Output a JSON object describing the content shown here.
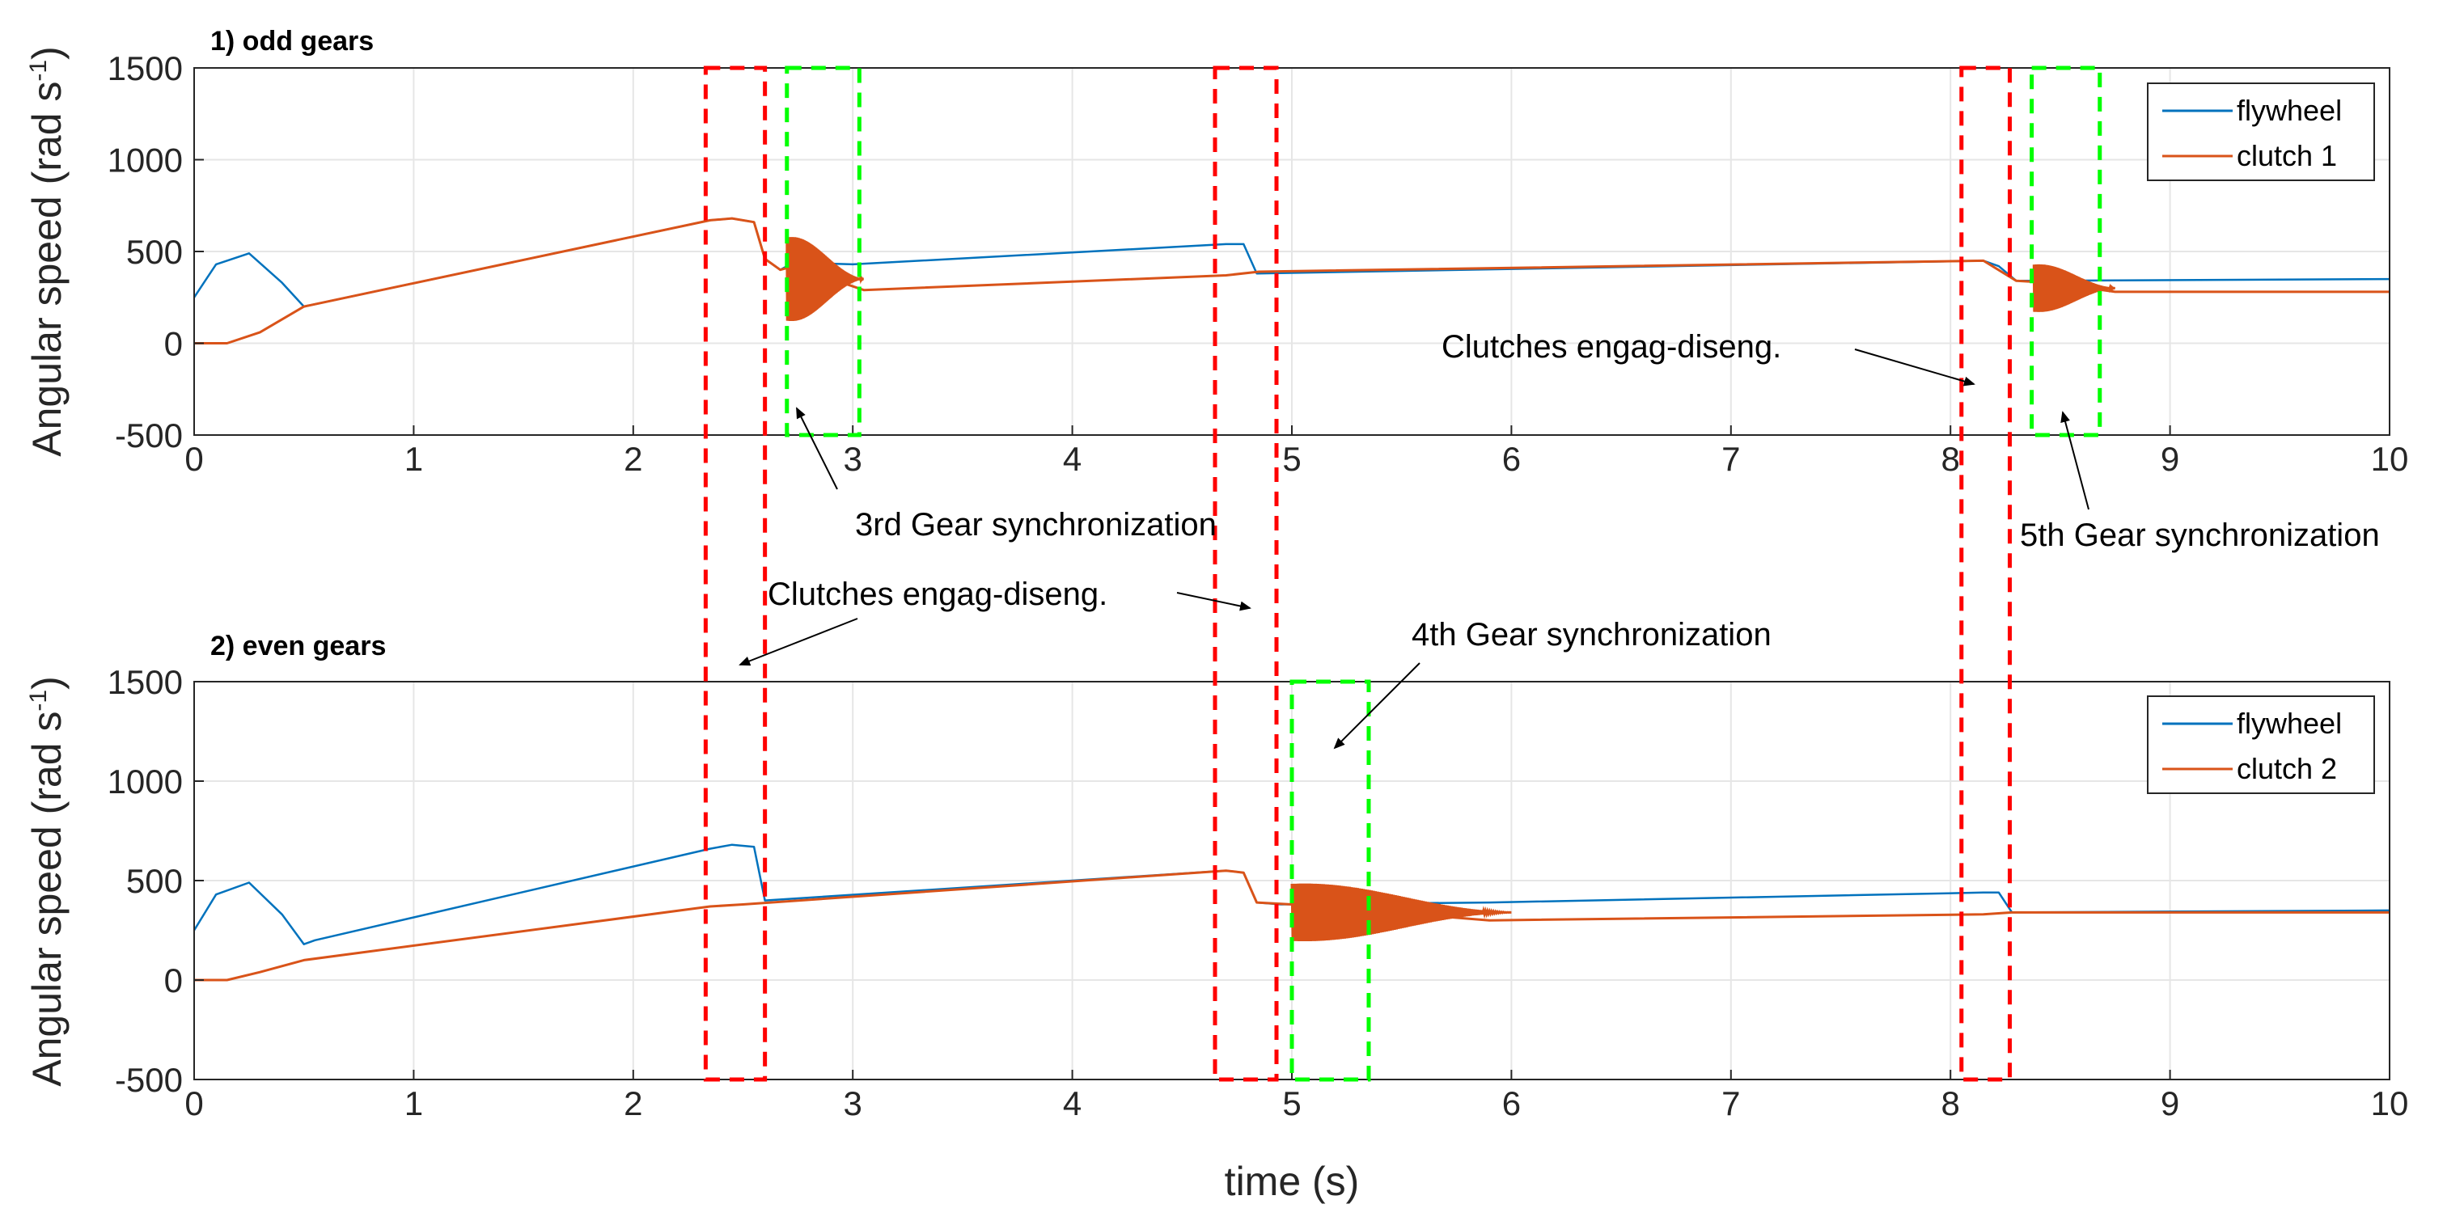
{
  "chart_data": [
    {
      "type": "line",
      "title": "1) odd gears",
      "xlabel": "",
      "ylabel": "Angular speed (rad s",
      "ylabel_sup": "-1",
      "ylabel_close": ")",
      "xlim": [
        0,
        10
      ],
      "ylim": [
        -500,
        1500
      ],
      "xticks": [
        "0",
        "1",
        "2",
        "3",
        "4",
        "5",
        "6",
        "7",
        "8",
        "9",
        "10"
      ],
      "yticks": [
        "-500",
        "0",
        "500",
        "1000",
        "1500"
      ],
      "grid": true,
      "legend_position": "top-right",
      "series": [
        {
          "name": "flywheel",
          "color": "#0072BD",
          "x": [
            0,
            0.1,
            0.25,
            0.4,
            0.5,
            2.35,
            2.45,
            2.55,
            2.6,
            2.67,
            2.73,
            3.0,
            4.7,
            4.78,
            4.84,
            8.15,
            8.22,
            8.3,
            10
          ],
          "y": [
            250,
            430,
            490,
            330,
            200,
            670,
            680,
            660,
            460,
            400,
            440,
            430,
            540,
            540,
            380,
            450,
            420,
            340,
            350
          ]
        },
        {
          "name": "clutch 1",
          "color": "#D95319",
          "x": [
            0,
            0.15,
            0.3,
            0.5,
            2.35,
            2.45,
            2.55,
            2.6,
            2.67,
            2.73,
            3.05,
            4.7,
            4.85,
            8.15,
            8.3,
            8.45,
            8.75,
            10
          ],
          "y": [
            0,
            0,
            60,
            200,
            670,
            680,
            660,
            460,
            400,
            420,
            290,
            370,
            390,
            450,
            340,
            330,
            280,
            280
          ]
        }
      ],
      "oscillation_bands": [
        {
          "series": "clutch 1",
          "x_start": 2.7,
          "x_end": 3.05,
          "center": 350,
          "amplitude": 300
        },
        {
          "series": "clutch 1",
          "x_start": 8.38,
          "x_end": 8.75,
          "center": 300,
          "amplitude": 170
        }
      ],
      "boxes": [
        {
          "style": "red-dashed",
          "x": [
            2.33,
            2.6
          ],
          "y": [
            -500,
            1500
          ]
        },
        {
          "style": "green-dashed",
          "x": [
            2.7,
            3.03
          ],
          "y": [
            -500,
            1500
          ]
        },
        {
          "style": "red-dashed",
          "x": [
            4.65,
            4.93
          ],
          "y": [
            -500,
            1500
          ]
        },
        {
          "style": "red-dashed",
          "x": [
            8.05,
            8.27
          ],
          "y": [
            -500,
            1500
          ]
        },
        {
          "style": "green-dashed",
          "x": [
            8.37,
            8.68
          ],
          "y": [
            -500,
            1500
          ]
        }
      ]
    },
    {
      "type": "line",
      "title": "2) even gears",
      "xlabel": "time (s)",
      "ylabel": "Angular speed (rad s",
      "ylabel_sup": "-1",
      "ylabel_close": ")",
      "xlim": [
        0,
        10
      ],
      "ylim": [
        -500,
        1500
      ],
      "xticks": [
        "0",
        "1",
        "2",
        "3",
        "4",
        "5",
        "6",
        "7",
        "8",
        "9",
        "10"
      ],
      "yticks": [
        "-500",
        "0",
        "500",
        "1000",
        "1500"
      ],
      "grid": true,
      "legend_position": "top-right",
      "series": [
        {
          "name": "flywheel",
          "color": "#0072BD",
          "x": [
            0,
            0.1,
            0.25,
            0.4,
            0.5,
            0.55,
            2.35,
            2.45,
            2.55,
            2.6,
            4.7,
            4.78,
            4.84,
            4.95,
            5.9,
            8.15,
            8.22,
            8.28,
            10
          ],
          "y": [
            250,
            430,
            490,
            330,
            180,
            200,
            660,
            680,
            670,
            400,
            550,
            540,
            390,
            380,
            390,
            440,
            440,
            340,
            350
          ]
        },
        {
          "name": "clutch 2",
          "color": "#D95319",
          "x": [
            0,
            0.15,
            0.3,
            0.5,
            2.35,
            2.5,
            4.7,
            4.78,
            4.84,
            5.0,
            5.9,
            8.15,
            8.28,
            10
          ],
          "y": [
            0,
            0,
            40,
            100,
            370,
            380,
            550,
            540,
            390,
            380,
            300,
            330,
            340,
            340
          ]
        }
      ],
      "oscillation_bands": [
        {
          "series": "clutch 2",
          "x_start": 5.0,
          "x_end": 6.0,
          "center": 340,
          "amplitude": 190
        }
      ],
      "boxes": [
        {
          "style": "red-dashed",
          "x": [
            2.33,
            2.6
          ],
          "y": [
            -500,
            1500
          ]
        },
        {
          "style": "red-dashed",
          "x": [
            4.65,
            4.93
          ],
          "y": [
            -500,
            1500
          ]
        },
        {
          "style": "green-dashed",
          "x": [
            5.0,
            5.35
          ],
          "y": [
            -500,
            1500
          ]
        },
        {
          "style": "red-dashed",
          "x": [
            8.05,
            8.27
          ],
          "y": [
            -500,
            1500
          ]
        }
      ]
    }
  ],
  "annotations": {
    "gear3": "3rd Gear synchronization",
    "gear5": "5th Gear synchronization",
    "gear4": "4th Gear synchronization",
    "clutches_top": "Clutches engag-diseng.",
    "clutches_mid": "Clutches engag-diseng."
  },
  "colors": {
    "flywheel": "#0072BD",
    "clutch": "#D95319",
    "red_box": "#FF0000",
    "green_box": "#00FF00"
  }
}
